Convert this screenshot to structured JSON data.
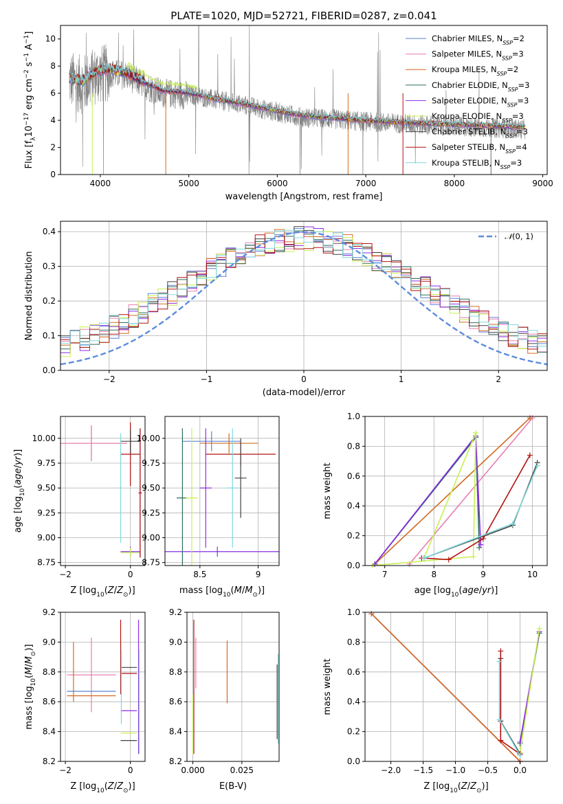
{
  "chart_data": [
    {
      "id": "spectrum",
      "type": "line",
      "title": "PLATE=1020, MJD=52721, FIBERID=0287, z=0.041",
      "xlabel": "wavelength [Angstrom, rest frame]",
      "ylabel": "Flux [f_λ 10^-17 erg cm^-2 s^-1 A^-1]",
      "xlim": [
        3550,
        9050
      ],
      "ylim": [
        0,
        11
      ],
      "xticks": [
        4000,
        5000,
        6000,
        7000,
        8000,
        9000
      ],
      "yticks": [
        0,
        2,
        4,
        6,
        8,
        10
      ],
      "grid": false,
      "legend_position": "top-right",
      "observed_color": "#808080",
      "observed_anchors": {
        "x": [
          3650,
          3800,
          3950,
          4100,
          4300,
          4500,
          4700,
          4900,
          5100,
          5300,
          5500,
          5700,
          6000,
          6300,
          6600,
          7000,
          7300,
          7600,
          8000,
          8400,
          8800
        ],
        "y": [
          7.0,
          6.6,
          7.3,
          7.5,
          7.3,
          6.6,
          6.0,
          5.9,
          5.8,
          5.5,
          5.3,
          5.0,
          4.6,
          4.2,
          4.1,
          3.9,
          3.8,
          3.7,
          3.55,
          3.45,
          3.35
        ]
      },
      "series": [
        {
          "name": "Chabrier MILES",
          "nssp": "2",
          "color": "#5a7fd4"
        },
        {
          "name": "Salpeter MILES",
          "nssp": "3",
          "color": "#e87db3"
        },
        {
          "name": "Kroupa MILES",
          "nssp": "2",
          "color": "#d2691e"
        },
        {
          "name": "Chabrier ELODIE",
          "nssp": "3",
          "color": "#2f6e5e"
        },
        {
          "name": "Salpeter ELODIE",
          "nssp": "3",
          "color": "#8a2be2"
        },
        {
          "name": "Kroupa ELODIE",
          "nssp": "3",
          "color": "#c8f050"
        },
        {
          "name": "Chabrier STELIB",
          "nssp": "3",
          "color": "#404040"
        },
        {
          "name": "Salpeter STELIB",
          "nssp": "4",
          "color": "#b01010"
        },
        {
          "name": "Kroupa STELIB",
          "nssp": "3",
          "color": "#7fd8dc"
        }
      ],
      "model_anchors": {
        "x": [
          3650,
          3800,
          3950,
          4100,
          4300,
          4500,
          4700,
          4900,
          5100,
          5300,
          5500,
          5700,
          6000,
          6300,
          6600,
          7000,
          7300,
          7600,
          8000,
          8400,
          8800
        ],
        "y": [
          7.1,
          6.9,
          7.6,
          7.8,
          7.5,
          6.8,
          6.2,
          6.1,
          5.9,
          5.6,
          5.35,
          5.1,
          4.7,
          4.35,
          4.2,
          4.0,
          3.9,
          3.8,
          3.7,
          3.6,
          3.5
        ]
      }
    },
    {
      "id": "residuals",
      "type": "histogram",
      "xlabel": "(data-model)/error",
      "ylabel": "Normed distribution",
      "xlim": [
        -2.5,
        2.5
      ],
      "ylim": [
        0,
        0.43
      ],
      "xticks": [
        -2,
        -1,
        0,
        1,
        2
      ],
      "yticks": [
        0.0,
        0.1,
        0.2,
        0.3,
        0.4
      ],
      "grid": true,
      "legend_position": "top-right",
      "reference_curve": {
        "name": "N(0,1)",
        "color": "#5b8bdc",
        "style": "dashed"
      },
      "bin_width": 0.1,
      "series_colors": [
        "#5a7fd4",
        "#e87db3",
        "#d2691e",
        "#2f6e5e",
        "#8a2be2",
        "#c8f050",
        "#404040",
        "#b01010",
        "#7fd8dc"
      ]
    },
    {
      "id": "age-vs-Z",
      "type": "errorbar",
      "xlabel": "Z [log10(Z/Z☉)]",
      "ylabel": "age  [log10(age/yr)]",
      "xlim": [
        -2.15,
        0.45
      ],
      "ylim": [
        8.72,
        10.22
      ],
      "xticks": [
        -2,
        0
      ],
      "yticks": [
        8.75,
        9.0,
        9.25,
        9.5,
        9.75,
        10.0
      ],
      "grid": true,
      "points": [
        {
          "x": -1.2,
          "xerr": 1.1,
          "y": 9.95,
          "yerr": 0.18,
          "color": "#d2691e"
        },
        {
          "x": -1.2,
          "xerr": 1.1,
          "y": 9.95,
          "yerr": 0.18,
          "color": "#e87db3"
        },
        {
          "x": 0.0,
          "xerr": 0.3,
          "y": 9.84,
          "yerr": 0.32,
          "color": "#b01010"
        },
        {
          "x": 0.0,
          "xerr": 0.3,
          "y": 9.97,
          "yerr": 0.12,
          "color": "#404040"
        },
        {
          "x": 0.0,
          "xerr": 0.3,
          "y": 8.86,
          "yerr": 0.05,
          "color": "#8a2be2"
        },
        {
          "x": 0.0,
          "xerr": 0.3,
          "y": 8.85,
          "yerr": 0.05,
          "color": "#c8f050"
        },
        {
          "x": -0.3,
          "xerr": 0.05,
          "y": 9.5,
          "yerr": 0.55,
          "color": "#7fd8dc"
        },
        {
          "x": 0.3,
          "xerr": 0.05,
          "y": 9.45,
          "yerr": 0.65,
          "color": "#8a2be2"
        },
        {
          "x": 0.3,
          "xerr": 0.05,
          "y": 9.45,
          "yerr": 0.65,
          "color": "#b01010"
        }
      ]
    },
    {
      "id": "age-vs-mass",
      "type": "errorbar",
      "xlabel": "mass [log10(M/M☉)]",
      "ylabel": "",
      "xlim": [
        8.2,
        9.18
      ],
      "ylim": [
        8.72,
        10.22
      ],
      "xticks": [
        8.5,
        9.0
      ],
      "yticks": [
        8.75,
        9.0,
        9.25,
        9.5,
        9.75,
        10.0
      ],
      "grid": true,
      "points": [
        {
          "x": 8.6,
          "xerr": 0.25,
          "y": 9.97,
          "yerr": 0.1,
          "color": "#5a7fd4"
        },
        {
          "x": 8.75,
          "xerr": 0.25,
          "y": 9.95,
          "yerr": 0.1,
          "color": "#d2691e"
        },
        {
          "x": 8.85,
          "xerr": 0.3,
          "y": 9.84,
          "yerr": 0.12,
          "color": "#b01010"
        },
        {
          "x": 8.65,
          "xerr": 0.6,
          "y": 8.86,
          "yerr": 0.05,
          "color": "#8a2be2"
        },
        {
          "x": 8.35,
          "xerr": 0.05,
          "y": 9.4,
          "yerr": 0.7,
          "color": "#2f6e5e"
        },
        {
          "x": 8.43,
          "xerr": 0.05,
          "y": 9.4,
          "yerr": 0.7,
          "color": "#c8f050"
        },
        {
          "x": 8.55,
          "xerr": 0.05,
          "y": 9.5,
          "yerr": 0.6,
          "color": "#8a2be2"
        },
        {
          "x": 8.78,
          "xerr": 0.05,
          "y": 9.5,
          "yerr": 0.6,
          "color": "#7fd8dc"
        },
        {
          "x": 8.85,
          "xerr": 0.05,
          "y": 9.6,
          "yerr": 0.4,
          "color": "#404040"
        }
      ]
    },
    {
      "id": "weight-vs-age",
      "type": "line",
      "xlabel": "age  [log10(age/yr)]",
      "ylabel": "mass weight",
      "xlim": [
        6.6,
        10.3
      ],
      "ylim": [
        0,
        1
      ],
      "xticks": [
        7,
        8,
        9,
        10
      ],
      "yticks": [
        0.0,
        0.2,
        0.4,
        0.6,
        0.8,
        1.0
      ],
      "grid": true,
      "series": [
        {
          "name": "Chabrier MILES",
          "color": "#5a7fd4",
          "x": [
            6.8,
            8.85
          ],
          "y": [
            0.01,
            0.86
          ]
        },
        {
          "name": "Salpeter MILES",
          "color": "#e87db3",
          "x": [
            7.5,
            10.0
          ],
          "y": [
            0.01,
            0.99
          ]
        },
        {
          "name": "Kroupa MILES",
          "color": "#d2691e",
          "x": [
            6.8,
            9.95
          ],
          "y": [
            0.01,
            0.99
          ]
        },
        {
          "name": "Chabrier ELODIE",
          "color": "#2f6e5e",
          "x": [
            6.8,
            8.85,
            8.92
          ],
          "y": [
            0.01,
            0.86,
            0.12
          ]
        },
        {
          "name": "Salpeter ELODIE",
          "color": "#8a2be2",
          "x": [
            6.8,
            8.85,
            8.95
          ],
          "y": [
            0.01,
            0.87,
            0.14
          ]
        },
        {
          "name": "Kroupa ELODIE",
          "color": "#c8f050",
          "x": [
            6.75,
            8.8,
            8.85,
            7.8
          ],
          "y": [
            0.0,
            0.06,
            0.89,
            0.05
          ]
        },
        {
          "name": "Chabrier STELIB",
          "color": "#404040",
          "x": [
            7.8,
            9.6,
            10.1
          ],
          "y": [
            0.05,
            0.27,
            0.69
          ]
        },
        {
          "name": "Salpeter STELIB",
          "color": "#b01010",
          "x": [
            7.75,
            8.3,
            9.0,
            9.95
          ],
          "y": [
            0.05,
            0.04,
            0.18,
            0.74
          ]
        },
        {
          "name": "Kroupa STELIB",
          "color": "#7fd8dc",
          "x": [
            7.8,
            9.6,
            10.1
          ],
          "y": [
            0.05,
            0.28,
            0.67
          ]
        }
      ]
    },
    {
      "id": "mass-vs-Z",
      "type": "errorbar",
      "xlabel": "Z [log10(Z/Z☉)]",
      "ylabel": "mass [log10(M/M☉)]",
      "xlim": [
        -2.15,
        0.45
      ],
      "ylim": [
        8.2,
        9.2
      ],
      "xticks": [
        -2,
        0
      ],
      "yticks": [
        8.2,
        8.4,
        8.6,
        8.8,
        9.0,
        9.2
      ],
      "grid": true,
      "points": [
        {
          "x": -1.2,
          "xerr": 0.75,
          "y": 8.78,
          "yerr": 0.25,
          "color": "#e87db3"
        },
        {
          "x": -1.2,
          "xerr": 0.75,
          "y": 8.67,
          "yerr": 0.0,
          "color": "#5a7fd4"
        },
        {
          "x": -1.2,
          "xerr": 0.75,
          "y": 8.64,
          "yerr": 0.0,
          "color": "#d2691e"
        },
        {
          "x": -1.75,
          "xerr": 0.0,
          "y": 8.8,
          "yerr": 0.2,
          "color": "#d2691e"
        },
        {
          "x": -0.05,
          "xerr": 0.25,
          "y": 8.83,
          "yerr": 0.0,
          "color": "#404040"
        },
        {
          "x": -0.05,
          "xerr": 0.25,
          "y": 8.79,
          "yerr": 0.0,
          "color": "#b01010"
        },
        {
          "x": -0.05,
          "xerr": 0.25,
          "y": 8.54,
          "yerr": 0.0,
          "color": "#8a2be2"
        },
        {
          "x": -0.05,
          "xerr": 0.25,
          "y": 8.39,
          "yerr": 0.0,
          "color": "#c8f050"
        },
        {
          "x": -0.05,
          "xerr": 0.25,
          "y": 8.34,
          "yerr": 0.0,
          "color": "#404040"
        },
        {
          "x": -0.3,
          "xerr": 0.0,
          "y": 8.9,
          "yerr": 0.25,
          "color": "#b01010"
        },
        {
          "x": -0.28,
          "xerr": 0.0,
          "y": 8.7,
          "yerr": 0.25,
          "color": "#7fd8dc"
        },
        {
          "x": 0.25,
          "xerr": 0.0,
          "y": 8.7,
          "yerr": 0.45,
          "color": "#8a2be2"
        },
        {
          "x": 0.27,
          "xerr": 0.0,
          "y": 8.6,
          "yerr": 0.35,
          "color": "#7fd8dc"
        }
      ]
    },
    {
      "id": "mass-vs-EBV",
      "type": "errorbar",
      "xlabel": "E(B-V)",
      "ylabel": "",
      "xlim": [
        -0.003,
        0.044
      ],
      "ylim": [
        8.2,
        9.2
      ],
      "xticks": [
        0.0,
        0.025
      ],
      "xtick_labels": [
        "0.000",
        "0.025"
      ],
      "yticks": [
        8.2,
        8.4,
        8.6,
        8.8,
        9.0,
        9.2
      ],
      "grid": true,
      "points": [
        {
          "x": 0.0005,
          "xerr": 0.0,
          "y": 8.7,
          "yerr": 0.45,
          "color": "#b01010"
        },
        {
          "x": 0.0,
          "xerr": 0.0,
          "y": 8.45,
          "yerr": 0.2,
          "color": "#c8f050"
        },
        {
          "x": 0.0015,
          "xerr": 0.0,
          "y": 8.86,
          "yerr": 0.17,
          "color": "#e87db3"
        },
        {
          "x": 0.0175,
          "xerr": 0.0,
          "y": 8.8,
          "yerr": 0.21,
          "color": "#d2691e"
        },
        {
          "x": 0.0435,
          "xerr": 0.0,
          "y": 8.62,
          "yerr": 0.3,
          "color": "#7fd8dc"
        },
        {
          "x": 0.043,
          "xerr": 0.0,
          "y": 8.6,
          "yerr": 0.25,
          "color": "#404040"
        }
      ]
    },
    {
      "id": "weight-vs-Z",
      "type": "line",
      "xlabel": "Z [log10(Z/Z☉)]",
      "ylabel": "mass weight",
      "xlim": [
        -2.4,
        0.42
      ],
      "ylim": [
        0,
        1
      ],
      "xticks": [
        -2.0,
        -1.5,
        -1.0,
        -0.5,
        0.0
      ],
      "xtick_labels": [
        "−2.0",
        "−1.5",
        "−1.0",
        "−0.5",
        "0.0"
      ],
      "yticks": [
        0.0,
        0.2,
        0.4,
        0.6,
        0.8,
        1.0
      ],
      "grid": true,
      "series": [
        {
          "name": "Chabrier MILES",
          "color": "#5a7fd4",
          "x": [
            -2.3,
            0.0
          ],
          "y": [
            0.99,
            0.0
          ]
        },
        {
          "name": "Salpeter MILES",
          "color": "#e87db3",
          "x": [
            -2.3,
            0.0
          ],
          "y": [
            0.99,
            0.0
          ]
        },
        {
          "name": "Kroupa MILES",
          "color": "#d2691e",
          "x": [
            -2.3,
            0.0
          ],
          "y": [
            0.99,
            0.0
          ]
        },
        {
          "name": "Chabrier ELODIE",
          "color": "#2f6e5e",
          "x": [
            0.0,
            0.3
          ],
          "y": [
            0.12,
            0.86
          ]
        },
        {
          "name": "Salpeter ELODIE",
          "color": "#8a2be2",
          "x": [
            0.0,
            0.3
          ],
          "y": [
            0.13,
            0.87
          ]
        },
        {
          "name": "Kroupa ELODIE",
          "color": "#c8f050",
          "x": [
            0.0,
            0.3
          ],
          "y": [
            0.06,
            0.89
          ]
        },
        {
          "name": "Chabrier STELIB",
          "color": "#404040",
          "x": [
            -0.3,
            -0.3,
            0.0
          ],
          "y": [
            0.69,
            0.27,
            0.05
          ]
        },
        {
          "name": "Salpeter STELIB",
          "color": "#b01010",
          "x": [
            -0.3,
            -0.3,
            0.0
          ],
          "y": [
            0.74,
            0.14,
            0.05
          ]
        },
        {
          "name": "Kroupa STELIB",
          "color": "#7fd8dc",
          "x": [
            -0.32,
            -0.32,
            0.0
          ],
          "y": [
            0.67,
            0.28,
            0.04
          ]
        }
      ]
    }
  ]
}
